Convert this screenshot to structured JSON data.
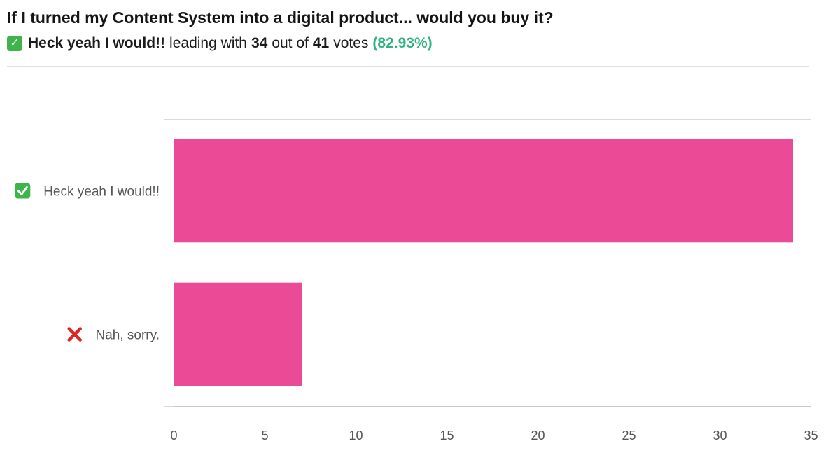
{
  "header": {
    "title": "If I turned my Content System into a digital product... would you buy it?",
    "leader_icon": "check-mark-icon",
    "leader_label": "Heck yeah I would!!",
    "leading_text": "leading with",
    "leader_votes": "34",
    "out_of_text": "out of",
    "total_votes": "41",
    "votes_text": "votes",
    "leader_percent": "(82.93%)"
  },
  "colors": {
    "bar": "#ea4a96",
    "grid": "#d9d9d9",
    "tick_text": "#555555",
    "check_green": "#3fb44a",
    "cross_red": "#e02424",
    "percent_green": "#2fb383"
  },
  "chart_data": {
    "type": "bar",
    "orientation": "horizontal",
    "categories": [
      "Heck yeah I would!!",
      "Nah, sorry."
    ],
    "category_icons": [
      "check-mark-icon",
      "cross-mark-icon"
    ],
    "values": [
      34,
      7
    ],
    "xlim": [
      0,
      35
    ],
    "xticks": [
      0,
      5,
      10,
      15,
      20,
      25,
      30,
      35
    ],
    "grid": true,
    "legend": "none"
  }
}
